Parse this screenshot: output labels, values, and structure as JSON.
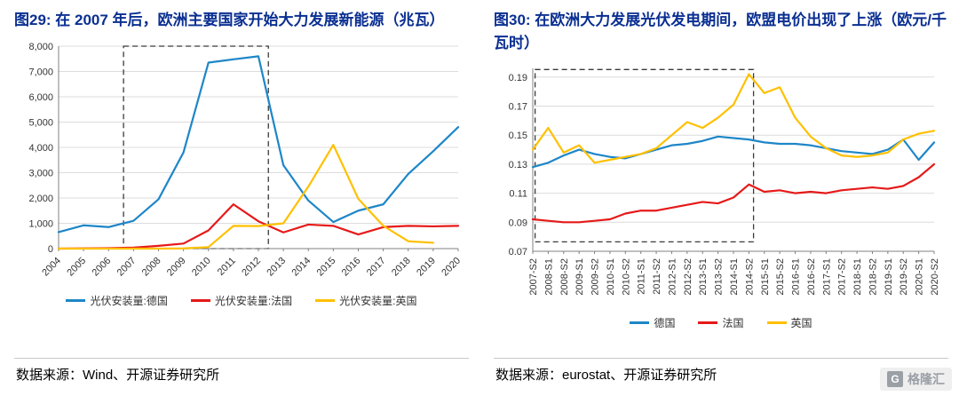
{
  "watermark": {
    "initial": "G",
    "text": "格隆汇"
  },
  "chart_data": [
    {
      "type": "line",
      "title": "图29:  在 2007 年后，欧洲主要国家开始大力发展新能源（兆瓦）",
      "source": "数据来源：Wind、开源证券研究所",
      "categories": [
        "2004",
        "2005",
        "2006",
        "2007",
        "2008",
        "2009",
        "2010",
        "2011",
        "2012",
        "2013",
        "2014",
        "2015",
        "2016",
        "2017",
        "2018",
        "2019",
        "2020"
      ],
      "series": [
        {
          "name": "光伏安装量:德国",
          "color": "#1e86c8",
          "values": [
            650,
            920,
            850,
            1100,
            1950,
            3800,
            7350,
            7480,
            7600,
            3300,
            1900,
            1050,
            1500,
            1750,
            2950,
            3850,
            4800
          ]
        },
        {
          "name": "光伏安装量:法国",
          "color": "#e61919",
          "values": [
            0,
            10,
            20,
            40,
            110,
            200,
            720,
            1750,
            1080,
            640,
            950,
            900,
            560,
            850,
            900,
            880,
            900
          ]
        },
        {
          "name": "光伏安装量:英国",
          "color": "#ffc000",
          "values": [
            0,
            0,
            0,
            0,
            0,
            10,
            60,
            900,
            890,
            1000,
            2450,
            4100,
            1970,
            900,
            290,
            230,
            null
          ]
        }
      ],
      "ylim": [
        0,
        8000
      ],
      "yticks": [
        0,
        1000,
        2000,
        3000,
        4000,
        5000,
        6000,
        7000,
        8000
      ],
      "ytick_labels": [
        "0",
        "1,000",
        "2,000",
        "3,000",
        "4,000",
        "5,000",
        "6,000",
        "7,000",
        "8,000"
      ],
      "x_label_rotation": -45,
      "grid": "horizontal",
      "legend_position": "bottom",
      "highlight_box": {
        "x0": 2.6,
        "x1": 8.4,
        "y0": 0,
        "y1": 8000
      }
    },
    {
      "type": "line",
      "title": "图30:  在欧洲大力发展光伏发电期间，欧盟电价出现了上涨（欧元/千瓦时）",
      "source": "数据来源：eurostat、开源证券研究所",
      "categories": [
        "2007-S2",
        "2008-S1",
        "2008-S2",
        "2009-S1",
        "2009-S2",
        "2010-S1",
        "2010-S2",
        "2011-S1",
        "2011-S2",
        "2012-S1",
        "2012-S2",
        "2013-S1",
        "2013-S2",
        "2014-S1",
        "2014-S2",
        "2015-S1",
        "2015-S2",
        "2016-S1",
        "2016-S2",
        "2017-S1",
        "2017-S2",
        "2018-S1",
        "2018-S2",
        "2019-S1",
        "2019-S2",
        "2020-S1",
        "2020-S2"
      ],
      "series": [
        {
          "name": "德国",
          "color": "#1e86c8",
          "values": [
            0.128,
            0.131,
            0.136,
            0.14,
            0.137,
            0.135,
            0.134,
            0.137,
            0.14,
            0.143,
            0.144,
            0.146,
            0.149,
            0.148,
            0.147,
            0.145,
            0.144,
            0.144,
            0.143,
            0.141,
            0.139,
            0.138,
            0.137,
            0.14,
            0.147,
            0.133,
            0.145
          ]
        },
        {
          "name": "法国",
          "color": "#e61919",
          "values": [
            0.092,
            0.091,
            0.09,
            0.09,
            0.091,
            0.092,
            0.096,
            0.098,
            0.098,
            0.1,
            0.102,
            0.104,
            0.103,
            0.107,
            0.116,
            0.111,
            0.112,
            0.11,
            0.111,
            0.11,
            0.112,
            0.113,
            0.114,
            0.113,
            0.115,
            0.121,
            0.13
          ]
        },
        {
          "name": "英国",
          "color": "#ffc000",
          "values": [
            0.14,
            0.155,
            0.138,
            0.143,
            0.131,
            0.133,
            0.135,
            0.137,
            0.141,
            0.15,
            0.159,
            0.155,
            0.162,
            0.171,
            0.192,
            0.179,
            0.183,
            0.162,
            0.149,
            0.141,
            0.136,
            0.135,
            0.136,
            0.138,
            0.147,
            0.151,
            0.153
          ]
        }
      ],
      "ylim": [
        0.07,
        0.196
      ],
      "yticks": [
        0.07,
        0.09,
        0.11,
        0.13,
        0.15,
        0.17,
        0.19
      ],
      "ytick_labels": [
        "0.07",
        "0.09",
        "0.11",
        "0.13",
        "0.15",
        "0.17",
        "0.19"
      ],
      "x_label_rotation": -90,
      "grid": "horizontal",
      "legend_position": "bottom",
      "highlight_box": {
        "x0": 0.15,
        "x1": 14.3,
        "y0": 0.0765,
        "y1": 0.1952
      }
    }
  ]
}
